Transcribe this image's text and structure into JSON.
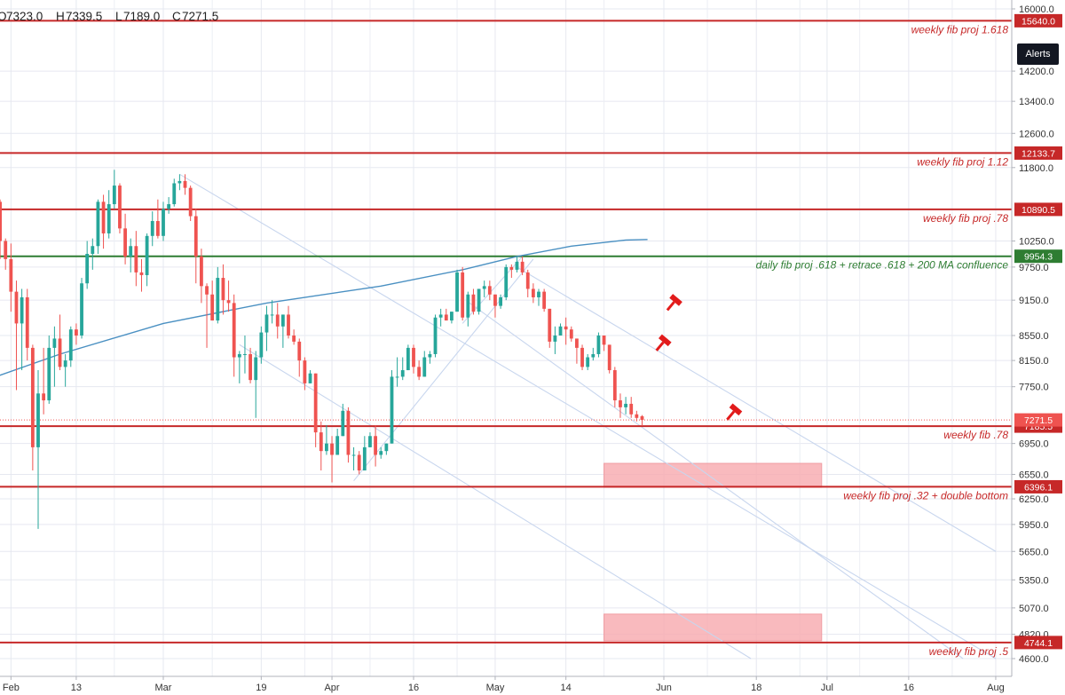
{
  "ohlc": {
    "o_label": "O",
    "o": "7323.0",
    "h_label": "H",
    "h": "7339.5",
    "l_label": "L",
    "l": "7189.0",
    "c_label": "C",
    "c": "7271.5"
  },
  "alerts_button": "Alerts",
  "colors": {
    "up": "#26a69a",
    "down": "#ef5350",
    "level": "#c62828",
    "confluence": "#2e7d32",
    "ma": "#4a90c2",
    "channel": "#c8d6ee",
    "zone": "#f8aeb3",
    "grid": "#e6e8f0"
  },
  "chart_data": {
    "type": "candlestick",
    "ylim": [
      4450,
      16150
    ],
    "y_ticks": [
      "16000.0",
      "14200.0",
      "13400.0",
      "12600.0",
      "11800.0",
      "10250.0",
      "9750.0",
      "9150.0",
      "8550.0",
      "8150.0",
      "7750.0",
      "6950.0",
      "6550.0",
      "6250.0",
      "5950.0",
      "5650.0",
      "5350.0",
      "5070.0",
      "4820.0",
      "4600.0"
    ],
    "x_ticks": [
      {
        "label": "Feb",
        "date": "2018-02-01"
      },
      {
        "label": "13",
        "date": "2018-02-13"
      },
      {
        "label": "Mar",
        "date": "2018-03-01"
      },
      {
        "label": "19",
        "date": "2018-03-19"
      },
      {
        "label": "Apr",
        "date": "2018-04-01"
      },
      {
        "label": "16",
        "date": "2018-04-16"
      },
      {
        "label": "May",
        "date": "2018-05-01"
      },
      {
        "label": "14",
        "date": "2018-05-14"
      },
      {
        "label": "Jun",
        "date": "2018-06-01"
      },
      {
        "label": "18",
        "date": "2018-06-18"
      },
      {
        "label": "Jul",
        "date": "2018-07-01"
      },
      {
        "label": "16",
        "date": "2018-07-16"
      },
      {
        "label": "Aug",
        "date": "2018-08-01"
      }
    ],
    "levels": [
      {
        "price": "15640.0",
        "label": "weekly fib proj 1.618",
        "color": "#c62828"
      },
      {
        "price": "12133.7",
        "label": "weekly  fib proj 1.12",
        "color": "#c62828"
      },
      {
        "price": "10890.5",
        "label": "weekly fib proj .78",
        "color": "#c62828"
      },
      {
        "price": "9954.3",
        "label": "daily fib proj .618  + retrace .618 + 200 MA confluence",
        "color": "#2e7d32"
      },
      {
        "price": "7185.5",
        "label": "weekly fib .78",
        "color": "#c62828"
      },
      {
        "price": "6396.1",
        "label": "weekly fib proj .32 + double bottom",
        "color": "#c62828"
      },
      {
        "price": "4744.1",
        "label": "weekly fib proj .5",
        "color": "#c62828"
      }
    ],
    "current_price": {
      "value": "7271.5",
      "color": "#ef5350"
    },
    "zones": [
      {
        "from": "2018-05-21",
        "to": "2018-06-30",
        "low": 6390,
        "high": 6690
      },
      {
        "from": "2018-05-21",
        "to": "2018-06-30",
        "low": 4760,
        "high": 5010
      }
    ],
    "markers": [
      {
        "date": "2018-06-03",
        "price": 9130
      },
      {
        "date": "2018-06-01",
        "price": 8450
      },
      {
        "date": "2018-06-14",
        "price": 7400
      }
    ],
    "ma200": [
      {
        "date": "2018-01-24",
        "value": 7750
      },
      {
        "date": "2018-02-10",
        "value": 8250
      },
      {
        "date": "2018-03-01",
        "value": 8750
      },
      {
        "date": "2018-03-20",
        "value": 9100
      },
      {
        "date": "2018-04-10",
        "value": 9400
      },
      {
        "date": "2018-04-25",
        "value": 9700
      },
      {
        "date": "2018-05-05",
        "value": 9950
      },
      {
        "date": "2018-05-15",
        "value": 10150
      },
      {
        "date": "2018-05-25",
        "value": 10270
      },
      {
        "date": "2018-05-29",
        "value": 10280
      }
    ],
    "channels": [
      {
        "x1": "2018-03-04",
        "y1": 11650,
        "x2": "2018-08-01",
        "y2": 4600
      },
      {
        "x1": "2018-05-05",
        "y1": 9750,
        "x2": "2018-08-01",
        "y2": 5650
      },
      {
        "x1": "2018-04-26",
        "y1": 9120,
        "x2": "2018-07-26",
        "y2": 4600
      },
      {
        "x1": "2018-03-15",
        "y1": 8400,
        "x2": "2018-06-17",
        "y2": 4600
      },
      {
        "x1": "2018-04-05",
        "y1": 6470,
        "x2": "2018-05-08",
        "y2": 9900
      },
      {
        "x1": "2018-04-25",
        "y1": 8750,
        "x2": "2018-05-06",
        "y2": 9950
      }
    ],
    "candles": [
      [
        "2018-01-24",
        11400,
        11600,
        10700,
        10900
      ],
      [
        "2018-01-25",
        10900,
        11200,
        10600,
        11100
      ],
      [
        "2018-01-26",
        11100,
        11300,
        10200,
        10500
      ],
      [
        "2018-01-27",
        10500,
        10900,
        10300,
        10700
      ],
      [
        "2018-01-28",
        10700,
        11900,
        10600,
        11600
      ],
      [
        "2018-01-29",
        11600,
        11700,
        10900,
        11050
      ],
      [
        "2018-01-30",
        11050,
        11100,
        9900,
        10250
      ],
      [
        "2018-01-31",
        10250,
        10300,
        9700,
        9900
      ],
      [
        "2018-02-01",
        9900,
        10200,
        8950,
        9300
      ],
      [
        "2018-02-02",
        9300,
        9500,
        7700,
        8750
      ],
      [
        "2018-02-03",
        8750,
        9350,
        8000,
        9200
      ],
      [
        "2018-02-04",
        9200,
        9350,
        8150,
        8350
      ],
      [
        "2018-02-05",
        8350,
        8400,
        6600,
        6900
      ],
      [
        "2018-02-06",
        6900,
        8000,
        5900,
        7650
      ],
      [
        "2018-02-07",
        7650,
        8350,
        7350,
        7550
      ],
      [
        "2018-02-08",
        7550,
        8550,
        7500,
        8350
      ],
      [
        "2018-02-09",
        8350,
        8700,
        7750,
        8500
      ],
      [
        "2018-02-10",
        8500,
        8900,
        8000,
        8050
      ],
      [
        "2018-02-11",
        8050,
        8250,
        7750,
        8150
      ],
      [
        "2018-02-12",
        8150,
        8700,
        8050,
        8650
      ],
      [
        "2018-02-13",
        8650,
        8750,
        8400,
        8550
      ],
      [
        "2018-02-14",
        8550,
        9550,
        8500,
        9450
      ],
      [
        "2018-02-15",
        9450,
        10250,
        9350,
        10000
      ],
      [
        "2018-02-16",
        10000,
        10300,
        9700,
        10150
      ],
      [
        "2018-02-17",
        10150,
        11100,
        10000,
        11050
      ],
      [
        "2018-02-18",
        11050,
        11200,
        10100,
        10400
      ],
      [
        "2018-02-19",
        10400,
        11300,
        10300,
        11000
      ],
      [
        "2018-02-20",
        11000,
        11750,
        10900,
        11400
      ],
      [
        "2018-02-21",
        11400,
        11450,
        10400,
        10500
      ],
      [
        "2018-02-22",
        10500,
        10800,
        9800,
        9950
      ],
      [
        "2018-02-23",
        9950,
        10300,
        9650,
        10150
      ],
      [
        "2018-02-24",
        10150,
        10450,
        9400,
        9650
      ],
      [
        "2018-02-25",
        9650,
        9900,
        9300,
        9600
      ],
      [
        "2018-02-26",
        9600,
        10400,
        9400,
        10350
      ],
      [
        "2018-02-27",
        10350,
        10850,
        10150,
        10650
      ],
      [
        "2018-02-28",
        10650,
        11100,
        10300,
        10350
      ],
      [
        "2018-03-01",
        10350,
        11050,
        10250,
        10900
      ],
      [
        "2018-03-02",
        10900,
        11150,
        10800,
        11000
      ],
      [
        "2018-03-03",
        11000,
        11550,
        10950,
        11450
      ],
      [
        "2018-03-04",
        11450,
        11650,
        11300,
        11500
      ],
      [
        "2018-03-05",
        11500,
        11650,
        11200,
        11350
      ],
      [
        "2018-03-06",
        11350,
        11400,
        10650,
        10750
      ],
      [
        "2018-03-07",
        10750,
        10900,
        9450,
        9950
      ],
      [
        "2018-03-08",
        9950,
        10100,
        9100,
        9400
      ],
      [
        "2018-03-09",
        9400,
        9450,
        8350,
        9250
      ],
      [
        "2018-03-10",
        9250,
        9500,
        8800,
        8800
      ],
      [
        "2018-03-11",
        8800,
        9750,
        8750,
        9550
      ],
      [
        "2018-03-12",
        9550,
        9800,
        8900,
        9150
      ],
      [
        "2018-03-13",
        9150,
        9500,
        8950,
        9100
      ],
      [
        "2018-03-14",
        9100,
        9250,
        7900,
        8200
      ],
      [
        "2018-03-15",
        8200,
        8300,
        7800,
        8250
      ],
      [
        "2018-03-16",
        8250,
        8550,
        7950,
        8250
      ],
      [
        "2018-03-17",
        8250,
        8350,
        7800,
        7850
      ],
      [
        "2018-03-18",
        7850,
        8300,
        7300,
        8200
      ],
      [
        "2018-03-19",
        8200,
        8700,
        8100,
        8600
      ],
      [
        "2018-03-20",
        8600,
        9050,
        8300,
        8900
      ],
      [
        "2018-03-21",
        8900,
        9150,
        8750,
        8900
      ],
      [
        "2018-03-22",
        8900,
        9100,
        8500,
        8700
      ],
      [
        "2018-03-23",
        8700,
        8900,
        8350,
        8900
      ],
      [
        "2018-03-24",
        8900,
        9050,
        8500,
        8550
      ],
      [
        "2018-03-25",
        8550,
        8650,
        8400,
        8450
      ],
      [
        "2018-03-26",
        8450,
        8500,
        7900,
        8150
      ],
      [
        "2018-03-27",
        8150,
        8200,
        7700,
        7800
      ],
      [
        "2018-03-28",
        7800,
        8000,
        7800,
        7950
      ],
      [
        "2018-03-29",
        7950,
        7950,
        6900,
        7100
      ],
      [
        "2018-03-30",
        7100,
        7250,
        6600,
        6850
      ],
      [
        "2018-03-31",
        6850,
        7200,
        6800,
        6950
      ],
      [
        "2018-04-01",
        6950,
        7050,
        6450,
        6800
      ],
      [
        "2018-04-02",
        6800,
        7150,
        6800,
        7050
      ],
      [
        "2018-04-03",
        7050,
        7500,
        7050,
        7400
      ],
      [
        "2018-04-04",
        7400,
        7450,
        6700,
        6800
      ],
      [
        "2018-04-05",
        6800,
        6900,
        6600,
        6800
      ],
      [
        "2018-04-06",
        6800,
        6850,
        6550,
        6600
      ],
      [
        "2018-04-07",
        6600,
        7050,
        6600,
        6900
      ],
      [
        "2018-04-08",
        6900,
        7100,
        6900,
        7050
      ],
      [
        "2018-04-09",
        7050,
        7200,
        6650,
        6800
      ],
      [
        "2018-04-10",
        6800,
        6900,
        6750,
        6850
      ],
      [
        "2018-04-11",
        6850,
        6950,
        6800,
        6950
      ],
      [
        "2018-04-12",
        6950,
        8000,
        6950,
        7900
      ],
      [
        "2018-04-13",
        7900,
        8200,
        7750,
        7900
      ],
      [
        "2018-04-14",
        7900,
        8200,
        7850,
        8000
      ],
      [
        "2018-04-15",
        8000,
        8400,
        8000,
        8350
      ],
      [
        "2018-04-16",
        8350,
        8400,
        7950,
        8050
      ],
      [
        "2018-04-17",
        8050,
        8150,
        7850,
        7900
      ],
      [
        "2018-04-18",
        7900,
        8300,
        7900,
        8200
      ],
      [
        "2018-04-19",
        8200,
        8300,
        8100,
        8250
      ],
      [
        "2018-04-20",
        8250,
        8900,
        8200,
        8850
      ],
      [
        "2018-04-21",
        8850,
        9000,
        8700,
        8900
      ],
      [
        "2018-04-22",
        8900,
        9000,
        8800,
        8800
      ],
      [
        "2018-04-23",
        8800,
        8950,
        8750,
        8950
      ],
      [
        "2018-04-24",
        8950,
        9700,
        8950,
        9650
      ],
      [
        "2018-04-25",
        9650,
        9750,
        8800,
        8850
      ],
      [
        "2018-04-26",
        8850,
        9300,
        8700,
        9250
      ],
      [
        "2018-04-27",
        9250,
        9350,
        8900,
        8950
      ],
      [
        "2018-04-28",
        8950,
        9350,
        8900,
        9350
      ],
      [
        "2018-04-29",
        9350,
        9500,
        9200,
        9400
      ],
      [
        "2018-04-30",
        9400,
        9500,
        9150,
        9250
      ],
      [
        "2018-05-01",
        9250,
        9250,
        8850,
        9050
      ],
      [
        "2018-05-02",
        9050,
        9250,
        9000,
        9200
      ],
      [
        "2018-05-03",
        9200,
        9800,
        9150,
        9750
      ],
      [
        "2018-05-04",
        9750,
        9800,
        9550,
        9700
      ],
      [
        "2018-05-05",
        9700,
        9950,
        9650,
        9850
      ],
      [
        "2018-05-06",
        9850,
        9950,
        9600,
        9650
      ],
      [
        "2018-05-07",
        9650,
        9700,
        9200,
        9350
      ],
      [
        "2018-05-08",
        9350,
        9450,
        9100,
        9200
      ],
      [
        "2018-05-09",
        9200,
        9350,
        9050,
        9300
      ],
      [
        "2018-05-10",
        9300,
        9350,
        8950,
        9000
      ],
      [
        "2018-05-11",
        9000,
        9000,
        8350,
        8450
      ],
      [
        "2018-05-12",
        8450,
        8700,
        8250,
        8550
      ],
      [
        "2018-05-13",
        8550,
        8750,
        8550,
        8700
      ],
      [
        "2018-05-14",
        8700,
        8850,
        8400,
        8650
      ],
      [
        "2018-05-15",
        8650,
        8700,
        8450,
        8500
      ],
      [
        "2018-05-16",
        8500,
        8500,
        8100,
        8350
      ],
      [
        "2018-05-17",
        8350,
        8400,
        8000,
        8050
      ],
      [
        "2018-05-18",
        8050,
        8250,
        8000,
        8200
      ],
      [
        "2018-05-19",
        8200,
        8350,
        8150,
        8250
      ],
      [
        "2018-05-20",
        8250,
        8600,
        8200,
        8550
      ],
      [
        "2018-05-21",
        8550,
        8550,
        8300,
        8400
      ],
      [
        "2018-05-22",
        8400,
        8400,
        7950,
        8000
      ],
      [
        "2018-05-23",
        8000,
        8050,
        7450,
        7550
      ],
      [
        "2018-05-24",
        7550,
        7650,
        7300,
        7450
      ],
      [
        "2018-05-25",
        7450,
        7600,
        7350,
        7500
      ],
      [
        "2018-05-26",
        7500,
        7600,
        7300,
        7350
      ],
      [
        "2018-05-27",
        7350,
        7400,
        7250,
        7300
      ],
      [
        "2018-05-28",
        7323,
        7339.5,
        7189,
        7271.5
      ]
    ]
  }
}
